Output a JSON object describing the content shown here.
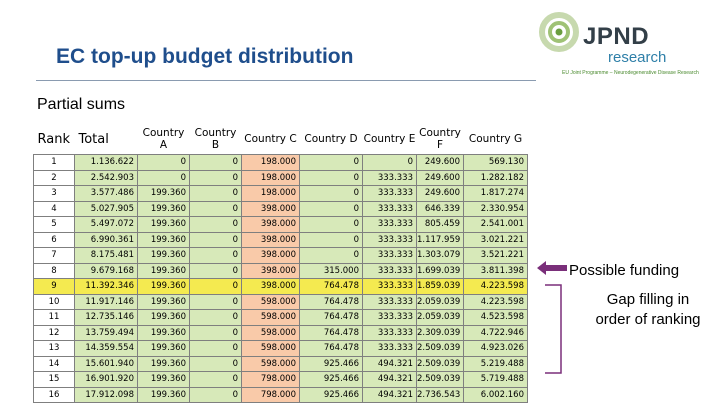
{
  "title": "EC top-up budget distribution",
  "subtitle": "Partial sums",
  "logo": {
    "name": "JPND",
    "sub": "research",
    "tagline": "EU Joint Programme – Neurodegenerative Disease Research"
  },
  "annotations": {
    "possible_funding": "Possible funding",
    "gap_line1": "Gap filling in",
    "gap_line2": "order of ranking"
  },
  "colors": {
    "title": "#1f4e8c",
    "green_cells": "#d7e9b9",
    "country_c": "#f9caa9",
    "highlight_row": "#f4ea50",
    "arrow": "#7a2f7a"
  },
  "table": {
    "headers": [
      "Rank",
      "Total",
      "Country A",
      "Country B",
      "Country C",
      "Country D",
      "Country E",
      "Country F",
      "Country G"
    ],
    "highlight_rank": "9",
    "rows": [
      [
        "1",
        "1.136.622",
        "0",
        "0",
        "198.000",
        "0",
        "0",
        "249.600",
        "569.130"
      ],
      [
        "2",
        "2.542.903",
        "0",
        "0",
        "198.000",
        "0",
        "333.333",
        "249.600",
        "1.282.182"
      ],
      [
        "3",
        "3.577.486",
        "199.360",
        "0",
        "198.000",
        "0",
        "333.333",
        "249.600",
        "1.817.274"
      ],
      [
        "4",
        "5.027.905",
        "199.360",
        "0",
        "398.000",
        "0",
        "333.333",
        "646.339",
        "2.330.954"
      ],
      [
        "5",
        "5.497.072",
        "199.360",
        "0",
        "398.000",
        "0",
        "333.333",
        "805.459",
        "2.541.001"
      ],
      [
        "6",
        "6.990.361",
        "199.360",
        "0",
        "398.000",
        "0",
        "333.333",
        "1.117.959",
        "3.021.221"
      ],
      [
        "7",
        "8.175.481",
        "199.360",
        "0",
        "398.000",
        "0",
        "333.333",
        "1.303.079",
        "3.521.221"
      ],
      [
        "8",
        "9.679.168",
        "199.360",
        "0",
        "398.000",
        "315.000",
        "333.333",
        "1.699.039",
        "3.811.398"
      ],
      [
        "9",
        "11.392.346",
        "199.360",
        "0",
        "398.000",
        "764.478",
        "333.333",
        "1.859.039",
        "4.223.598"
      ],
      [
        "10",
        "11.917.146",
        "199.360",
        "0",
        "598.000",
        "764.478",
        "333.333",
        "2.059.039",
        "4.223.598"
      ],
      [
        "11",
        "12.735.146",
        "199.360",
        "0",
        "598.000",
        "764.478",
        "333.333",
        "2.059.039",
        "4.523.598"
      ],
      [
        "12",
        "13.759.494",
        "199.360",
        "0",
        "598.000",
        "764.478",
        "333.333",
        "2.309.039",
        "4.722.946"
      ],
      [
        "13",
        "14.359.554",
        "199.360",
        "0",
        "598.000",
        "764.478",
        "333.333",
        "2.509.039",
        "4.923.026"
      ],
      [
        "14",
        "15.601.940",
        "199.360",
        "0",
        "598.000",
        "925.466",
        "494.321",
        "2.509.039",
        "5.219.488"
      ],
      [
        "15",
        "16.901.920",
        "199.360",
        "0",
        "798.000",
        "925.466",
        "494.321",
        "2.509.039",
        "5.719.488"
      ],
      [
        "16",
        "17.912.098",
        "199.360",
        "0",
        "798.000",
        "925.466",
        "494.321",
        "2.736.543",
        "6.002.160"
      ]
    ]
  }
}
